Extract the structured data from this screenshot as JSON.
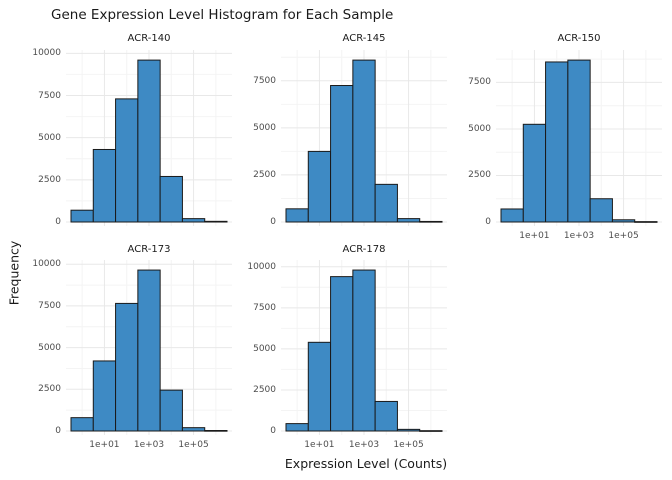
{
  "title": "Gene Expression Level Histogram for Each Sample",
  "axes": {
    "x_title": "Expression Level (Counts)",
    "y_title": "Frequency"
  },
  "colors": {
    "background": "#ffffff",
    "bar_fill": "#3e8ac4",
    "bar_stroke": "#1a1a1a",
    "grid_major": "#e8e8e8",
    "grid_minor": "#f4f4f4",
    "tick_label": "#4d4d4d",
    "text": "#1a1a1a"
  },
  "chart_data": [
    {
      "type": "bar",
      "subtype": "histogram",
      "title": "ACR-140",
      "x_scale": "log10",
      "bin_centers": [
        1,
        10,
        100,
        1000,
        10000,
        100000,
        1000000
      ],
      "values": [
        700,
        4300,
        7300,
        9600,
        2700,
        200,
        40
      ],
      "y_ticks": [
        0,
        2500,
        5000,
        7500,
        10000
      ],
      "x_tick_labels": [
        "1e+01",
        "1e+03",
        "1e+05"
      ],
      "show_x_axis": false,
      "ylim": [
        0,
        10080
      ],
      "grid": true,
      "legend": false
    },
    {
      "type": "bar",
      "subtype": "histogram",
      "title": "ACR-145",
      "x_scale": "log10",
      "bin_centers": [
        1,
        10,
        100,
        1000,
        10000,
        100000,
        1000000
      ],
      "values": [
        700,
        3750,
        7250,
        8600,
        2000,
        180,
        30
      ],
      "y_ticks": [
        0,
        2500,
        5000,
        7500
      ],
      "x_tick_labels": [
        "1e+01",
        "1e+03",
        "1e+05"
      ],
      "show_x_axis": false,
      "ylim": [
        0,
        9030
      ],
      "grid": true,
      "legend": false
    },
    {
      "type": "bar",
      "subtype": "histogram",
      "title": "ACR-150",
      "x_scale": "log10",
      "bin_centers": [
        1,
        10,
        100,
        1000,
        10000,
        100000,
        1000000
      ],
      "values": [
        700,
        5250,
        8600,
        8700,
        1250,
        120,
        20
      ],
      "y_ticks": [
        0,
        2500,
        5000,
        7500
      ],
      "x_tick_labels": [
        "1e+01",
        "1e+03",
        "1e+05"
      ],
      "show_x_axis": true,
      "ylim": [
        0,
        9135
      ],
      "grid": true,
      "legend": false
    },
    {
      "type": "bar",
      "subtype": "histogram",
      "title": "ACR-173",
      "x_scale": "log10",
      "bin_centers": [
        1,
        10,
        100,
        1000,
        10000,
        100000,
        1000000
      ],
      "values": [
        800,
        4200,
        7650,
        9650,
        2450,
        200,
        30
      ],
      "y_ticks": [
        0,
        2500,
        5000,
        7500,
        10000
      ],
      "x_tick_labels": [
        "1e+01",
        "1e+03",
        "1e+05"
      ],
      "show_x_axis": true,
      "ylim": [
        0,
        10133
      ],
      "grid": true,
      "legend": false
    },
    {
      "type": "bar",
      "subtype": "histogram",
      "title": "ACR-178",
      "x_scale": "log10",
      "bin_centers": [
        1,
        10,
        100,
        1000,
        10000,
        100000,
        1000000
      ],
      "values": [
        450,
        5400,
        9400,
        9800,
        1800,
        100,
        20
      ],
      "y_ticks": [
        0,
        2500,
        5000,
        7500,
        10000
      ],
      "x_tick_labels": [
        "1e+01",
        "1e+03",
        "1e+05"
      ],
      "show_x_axis": true,
      "ylim": [
        0,
        10290
      ],
      "grid": true,
      "legend": false
    }
  ]
}
